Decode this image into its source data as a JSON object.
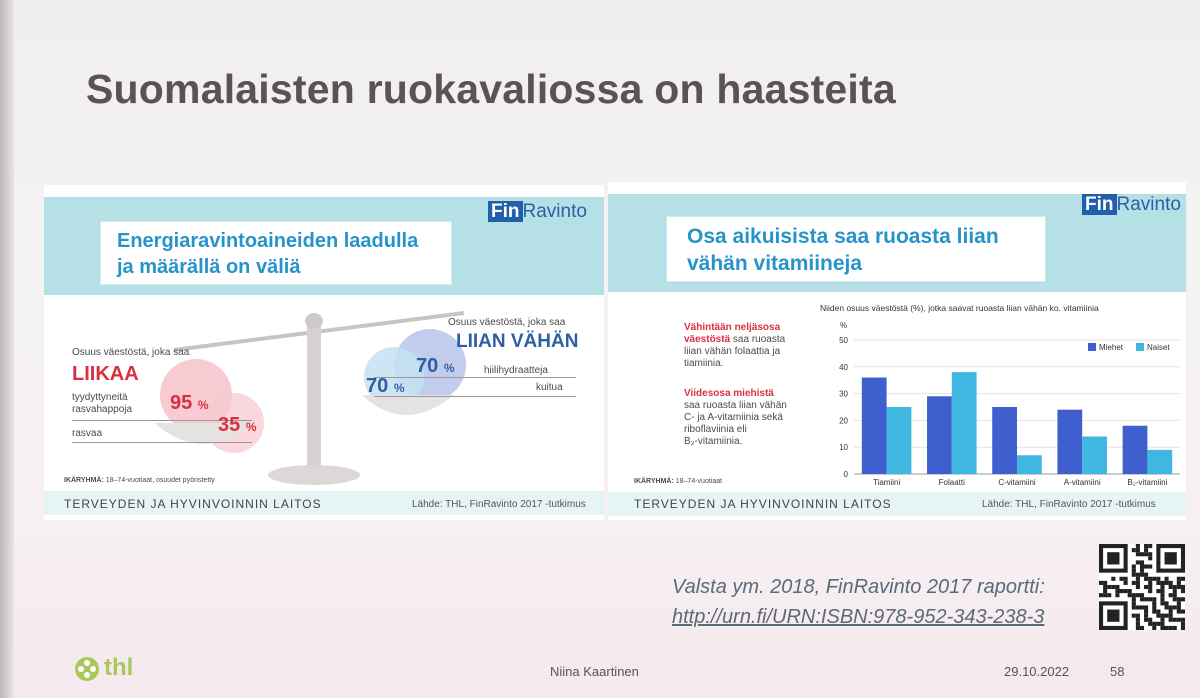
{
  "slide_title": "Suomalaisten ruokavaliossa on haasteita",
  "left_panel": {
    "logo_fin": "Fin",
    "logo_ravinto": "Ravinto",
    "banner_line1": "Energiaravintoaineiden laadulla",
    "banner_line2": "ja määrällä on väliä",
    "left_caption": "Osuus väestöstä, joka saa",
    "left_heading": "LIIKAA",
    "left_item1_line1": "tyydyttyneitä",
    "left_item1_line2": "rasvahappoja",
    "left_item1_value": "95",
    "left_item2": "rasvaa",
    "left_item2_value": "35",
    "right_caption": "Osuus väestöstä, joka saa",
    "right_heading": "LIIAN VÄHÄN",
    "right_item1": "hiilihydraatteja",
    "right_item1_value": "70",
    "right_item2": "kuitua",
    "right_item2_value": "70",
    "percent_sign": "%",
    "age_note_label": "IKÄRYHMÄ:",
    "age_note": "18–74-vuotiaat, osuudet pyöristetty",
    "footer_org": "TERVEYDEN JA HYVINVOINNIN LAITOS",
    "footer_source": "Lähde: THL, FinRavinto 2017 -tutkimus"
  },
  "right_panel": {
    "logo_fin": "Fin",
    "logo_ravinto": "Ravinto",
    "banner_line1": "Osa aikuisista saa ruoasta liian",
    "banner_line2": "vähän vitamiineja",
    "text1_bold_line1": "Vähintään neljäsosa",
    "text1_bold_line2": "väestöstä",
    "text1_rest_inline": "saa ruoasta",
    "text1_line3": "liian vähän folaattia ja",
    "text1_line4": "tiamiinia.",
    "text2_bold": "Viidesosa miehistä",
    "text2_line2": "saa ruoasta liian vähän",
    "text2_line3": "C- ja A-vitamiinia sekä",
    "text2_line4": "riboflaviinia eli",
    "text2_line5": "B₂-vitamiinia.",
    "age_note_label": "IKÄRYHMÄ:",
    "age_note": "18–74-vuotiaat",
    "footer_org": "TERVEYDEN JA HYVINVOINNIN LAITOS",
    "footer_source": "Lähde: THL, FinRavinto 2017 -tutkimus"
  },
  "chart_data": {
    "type": "bar",
    "title": "Niiden osuus väestöstä (%), jotka saavat ruoasta liian vähän ko. vitamiinia",
    "ylabel": "%",
    "xlabel": "",
    "ylim": [
      0,
      50
    ],
    "yticks": [
      0,
      10,
      20,
      30,
      40,
      50
    ],
    "categories": [
      "Tiamiini",
      "Folaatti",
      "C-vitamiini",
      "A-vitamiini",
      "B₂-vitamiini"
    ],
    "series": [
      {
        "name": "Miehet",
        "color": "#3f5fcf",
        "values": [
          36,
          29,
          25,
          24,
          18
        ]
      },
      {
        "name": "Naiset",
        "color": "#40b7e0",
        "values": [
          25,
          38,
          7,
          14,
          9
        ]
      }
    ],
    "legend": "top-right",
    "grid": true
  },
  "reference": {
    "line1": "Valsta ym. 2018, FinRavinto 2017 raportti:",
    "link": "http://urn.fi/URN:ISBN:978-952-343-238-3"
  },
  "footer": {
    "logo_text": "thl",
    "presenter": "Niina Kaartinen",
    "date": "29.10.2022",
    "page": "58"
  },
  "colors": {
    "accent_blue": "#2794c9",
    "banner_teal": "#b5e0e6",
    "liikaa_red": "#d9303f",
    "vahan_blue": "#2e5fa6"
  }
}
